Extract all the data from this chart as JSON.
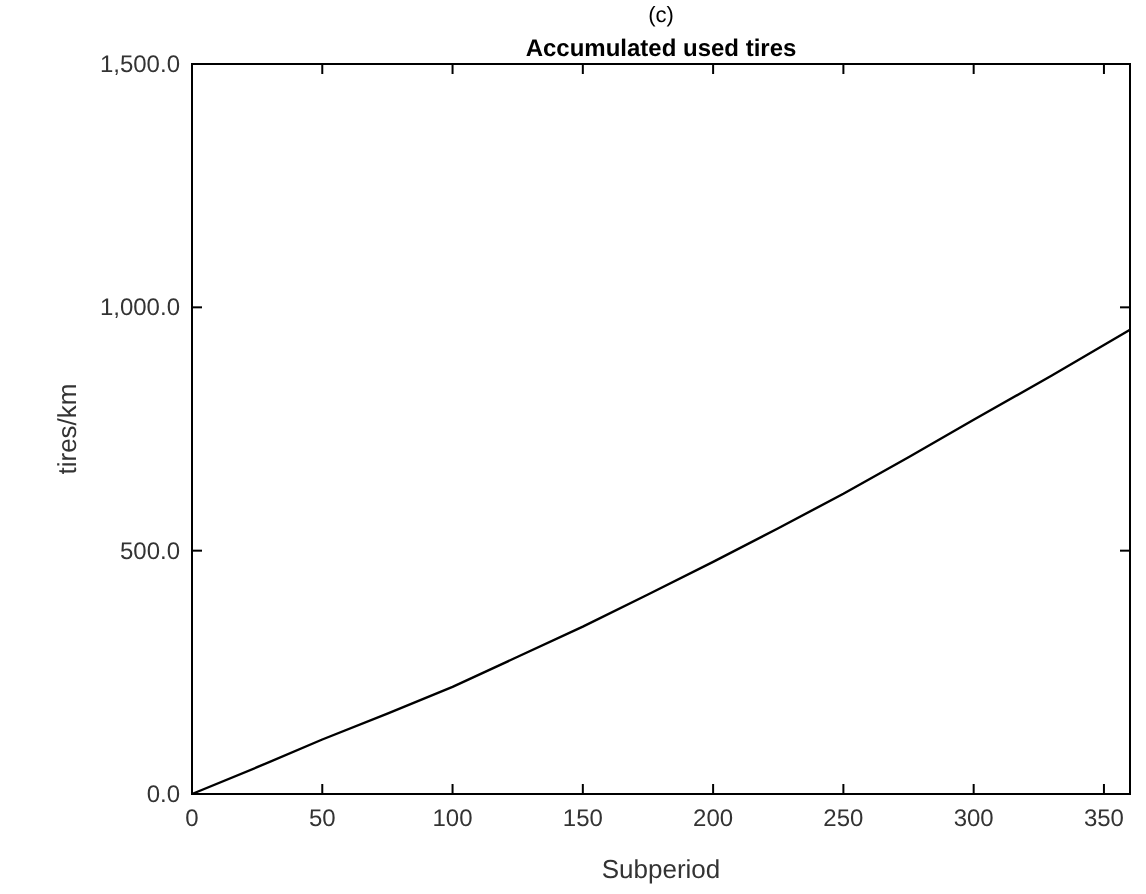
{
  "chart_data": {
    "type": "line",
    "title": "Accumulated used tires",
    "xlabel": "Subperiod",
    "ylabel": "tires/km",
    "annotations": [
      "(c)"
    ],
    "x": [
      0,
      25,
      50,
      75,
      100,
      125,
      150,
      175,
      200,
      225,
      250,
      275,
      300,
      330,
      360
    ],
    "series": [
      {
        "color": "#000000",
        "values": [
          0,
          55,
          112,
          165,
          220,
          282,
          344,
          410,
          477,
          546,
          617,
          692,
          769,
          860,
          954
        ]
      }
    ],
    "xlim": [
      0,
      360
    ],
    "xticks": [
      0,
      50,
      100,
      150,
      200,
      250,
      300,
      350
    ],
    "ylim": [
      0,
      1500
    ],
    "yticks": [
      {
        "value": 0,
        "label": "0.0"
      },
      {
        "value": 500,
        "label": "500.0"
      },
      {
        "value": 1000,
        "label": "1,000.0"
      },
      {
        "value": 1500,
        "label": "1,500.0"
      }
    ],
    "grid": false,
    "marker": "none",
    "line_style": "solid"
  }
}
